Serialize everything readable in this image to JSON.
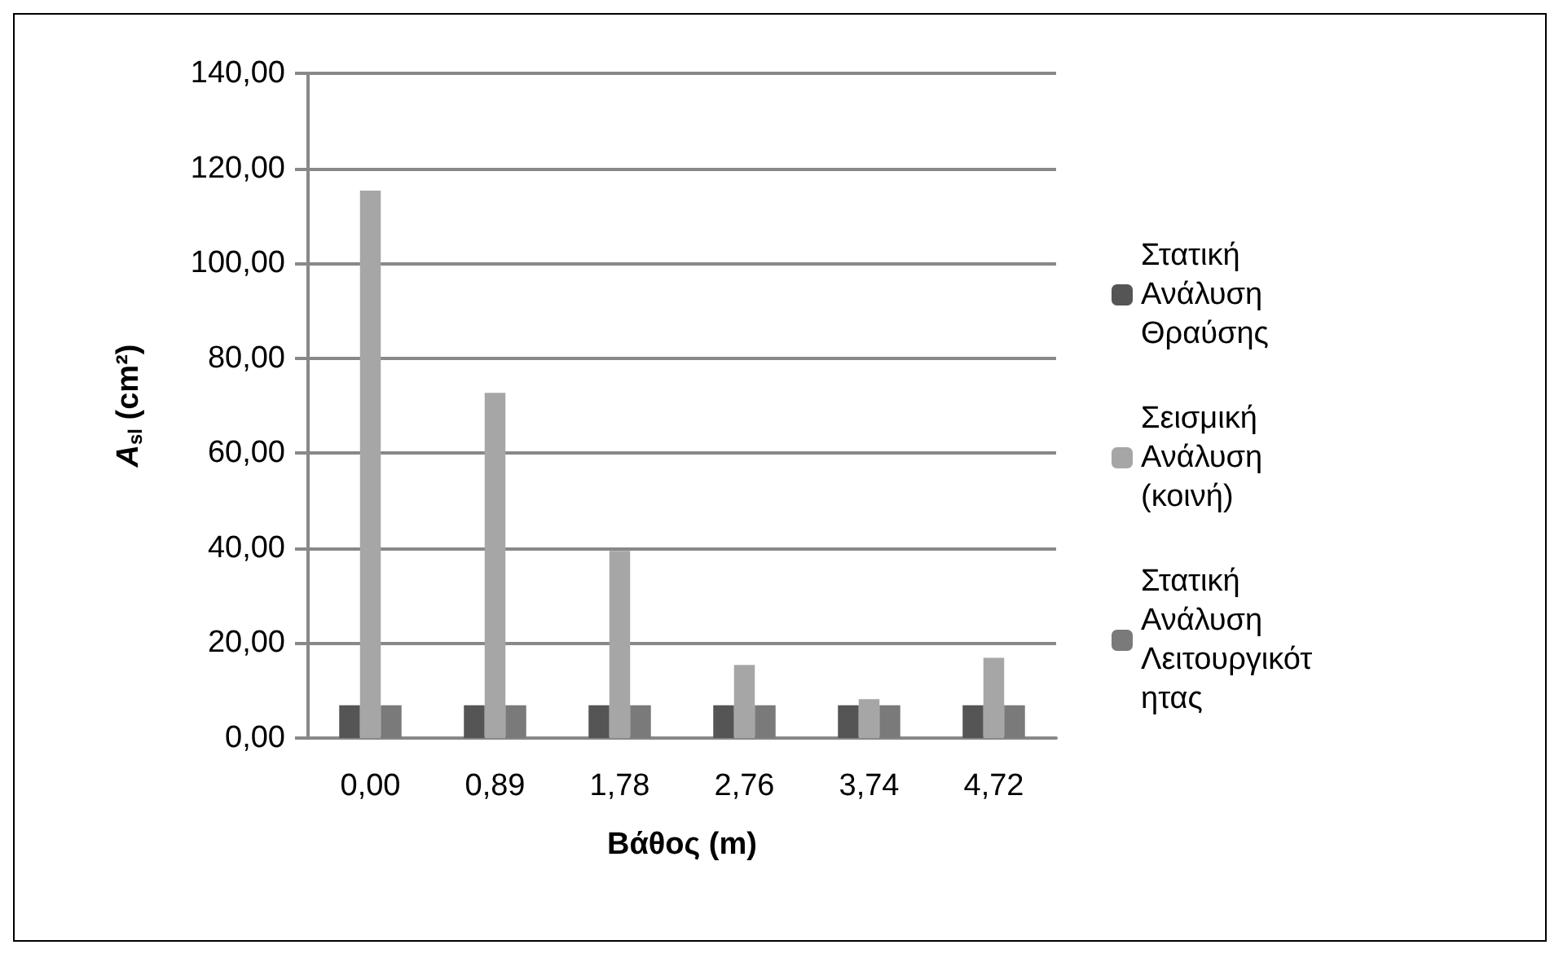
{
  "chart_data": {
    "type": "bar",
    "xlabel": "Βάθος (m)",
    "ylabel": "A$_{sl}$ (cm²)",
    "categories": [
      "0,00",
      "0,89",
      "1,78",
      "2,76",
      "3,74",
      "4,72"
    ],
    "series": [
      {
        "name": "Στατική Ανάλυση Θραύσης",
        "color": "#555555",
        "values": [
          6.9,
          6.9,
          6.9,
          6.9,
          6.9,
          6.9
        ]
      },
      {
        "name": "Σεισμική Ανάλυση (κοινή)",
        "color": "#a6a6a6",
        "values": [
          115.3,
          72.7,
          39.4,
          15.4,
          8.2,
          16.9
        ]
      },
      {
        "name": "Στατική Ανάλυση Λειτουργικότητας",
        "color": "#7a7a7a",
        "values": [
          6.9,
          6.9,
          6.9,
          6.9,
          6.9,
          6.9
        ]
      }
    ],
    "ylim": [
      0,
      140
    ],
    "yticks": [
      {
        "value": 0,
        "label": "0,00"
      },
      {
        "value": 20,
        "label": "20,00"
      },
      {
        "value": 40,
        "label": "40,00"
      },
      {
        "value": 60,
        "label": "60,00"
      },
      {
        "value": 80,
        "label": "80,00"
      },
      {
        "value": 100,
        "label": "100,00"
      },
      {
        "value": 120,
        "label": "120,00"
      },
      {
        "value": 140,
        "label": "140,00"
      }
    ],
    "grid": "y",
    "legend": "right"
  }
}
